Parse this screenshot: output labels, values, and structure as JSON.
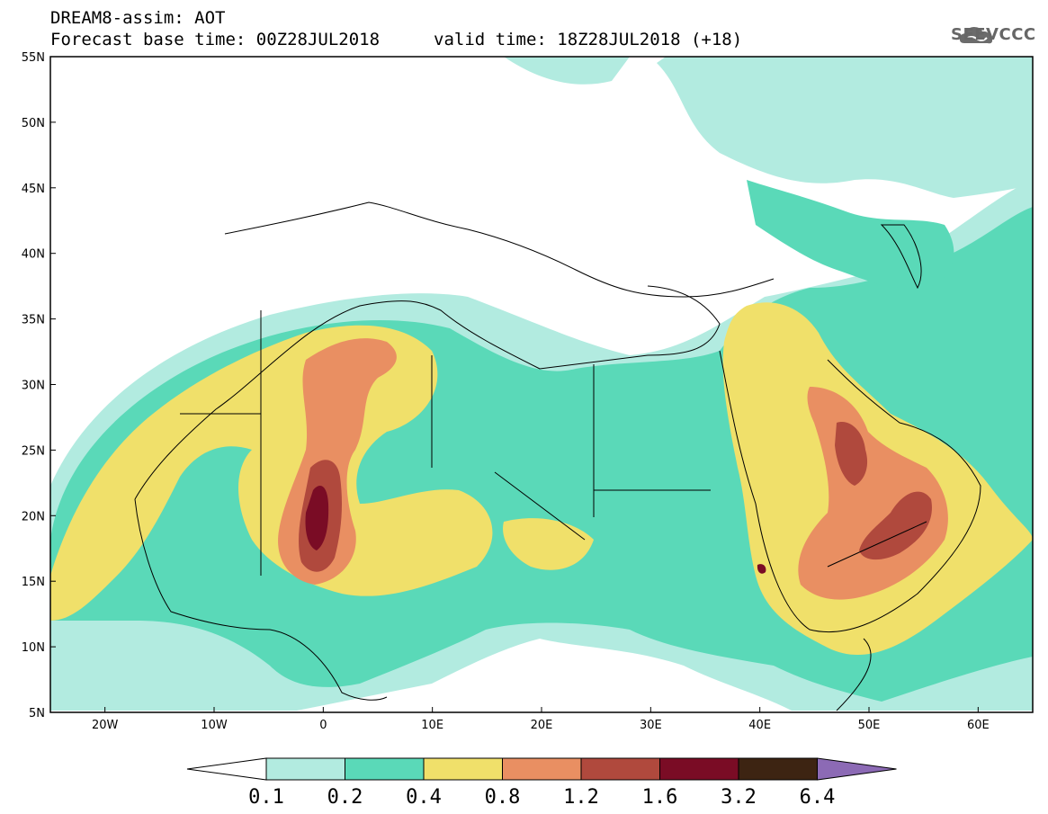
{
  "header": {
    "title": "DREAM8-assim: AOT",
    "base_time": "Forecast base time: 00Z28JUL2018",
    "valid_time": "valid time: 18Z28JUL2018 (+18)"
  },
  "logo": {
    "text": "SEEVCCC",
    "icon": "cloud-icon"
  },
  "map": {
    "lat_labels": [
      "55N",
      "50N",
      "45N",
      "40N",
      "35N",
      "30N",
      "25N",
      "20N",
      "15N",
      "10N",
      "5N"
    ],
    "lon_labels": [
      "20W",
      "10W",
      "0",
      "10E",
      "20E",
      "30E",
      "40E",
      "50E",
      "60E"
    ],
    "lat_range": [
      5,
      55
    ],
    "lon_range": [
      -25,
      65
    ]
  },
  "colorbar": {
    "colors": [
      "#b2ebe0",
      "#5ad9b8",
      "#f0e06a",
      "#e98f62",
      "#b0493d",
      "#7a0c25",
      "#3d2412",
      "#8c6ab5"
    ],
    "labels": [
      "0.1",
      "0.2",
      "0.4",
      "0.8",
      "1.2",
      "1.6",
      "3.2",
      "6.4"
    ]
  }
}
